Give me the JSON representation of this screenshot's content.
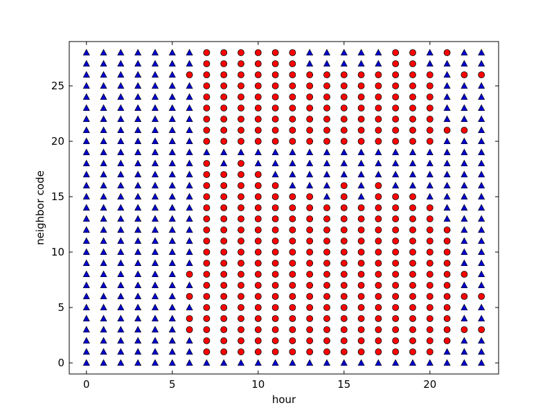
{
  "chart_data": {
    "type": "scatter",
    "title": "",
    "xlabel": "hour",
    "ylabel": "neighbor code",
    "xlim": [
      -1,
      24
    ],
    "ylim": [
      -1,
      29
    ],
    "xticks": [
      0,
      5,
      10,
      15,
      20
    ],
    "yticks": [
      0,
      5,
      10,
      15,
      20,
      25
    ],
    "xtick_labels": [
      "0",
      "5",
      "10",
      "15",
      "20"
    ],
    "ytick_labels": [
      "0",
      "5",
      "10",
      "15",
      "20",
      "25"
    ],
    "grid": false,
    "legend": "none",
    "colors": {
      "triangle_fill": "#0000cc",
      "circle_fill": "#ff0000",
      "marker_edge": "#000000"
    },
    "grid_hours": [
      0,
      1,
      2,
      3,
      4,
      5,
      6,
      7,
      8,
      9,
      10,
      11,
      12,
      13,
      14,
      15,
      16,
      17,
      18,
      19,
      20,
      21,
      22,
      23
    ],
    "grid_codes": [
      0,
      1,
      2,
      3,
      4,
      5,
      6,
      7,
      8,
      9,
      10,
      11,
      12,
      13,
      14,
      15,
      16,
      17,
      18,
      19,
      20,
      21,
      22,
      23,
      24,
      25,
      26,
      27,
      28
    ],
    "marker_shapes": [
      "triangle",
      "circle"
    ],
    "circle_ranges_by_hour": {
      "6": [
        [
          3,
          4
        ],
        [
          6,
          6
        ],
        [
          8,
          8
        ],
        [
          26,
          26
        ]
      ],
      "7": [
        [
          1,
          18
        ],
        [
          20,
          28
        ]
      ],
      "8": [
        [
          1,
          17
        ],
        [
          20,
          28
        ]
      ],
      "9": [
        [
          1,
          18
        ],
        [
          20,
          28
        ]
      ],
      "10": [
        [
          1,
          17
        ],
        [
          20,
          28
        ]
      ],
      "11": [
        [
          1,
          16
        ],
        [
          20,
          28
        ]
      ],
      "12": [
        [
          1,
          15
        ],
        [
          20,
          28
        ]
      ],
      "13": [
        [
          1,
          15
        ],
        [
          20,
          26
        ]
      ],
      "14": [
        [
          1,
          14
        ],
        [
          20,
          26
        ]
      ],
      "15": [
        [
          1,
          16
        ],
        [
          20,
          26
        ]
      ],
      "16": [
        [
          1,
          14
        ],
        [
          20,
          26
        ]
      ],
      "17": [
        [
          1,
          16
        ],
        [
          20,
          26
        ]
      ],
      "18": [
        [
          1,
          15
        ],
        [
          20,
          28
        ]
      ],
      "19": [
        [
          1,
          15
        ],
        [
          20,
          28
        ]
      ],
      "20": [
        [
          1,
          14
        ],
        [
          20,
          26
        ]
      ],
      "21": [
        [
          2,
          12
        ],
        [
          21,
          21
        ],
        [
          28,
          28
        ]
      ],
      "22": [
        [
          3,
          3
        ],
        [
          6,
          6
        ],
        [
          8,
          8
        ],
        [
          21,
          21
        ],
        [
          26,
          26
        ]
      ],
      "23": [
        [
          3,
          3
        ],
        [
          6,
          6
        ],
        [
          26,
          26
        ]
      ]
    }
  }
}
